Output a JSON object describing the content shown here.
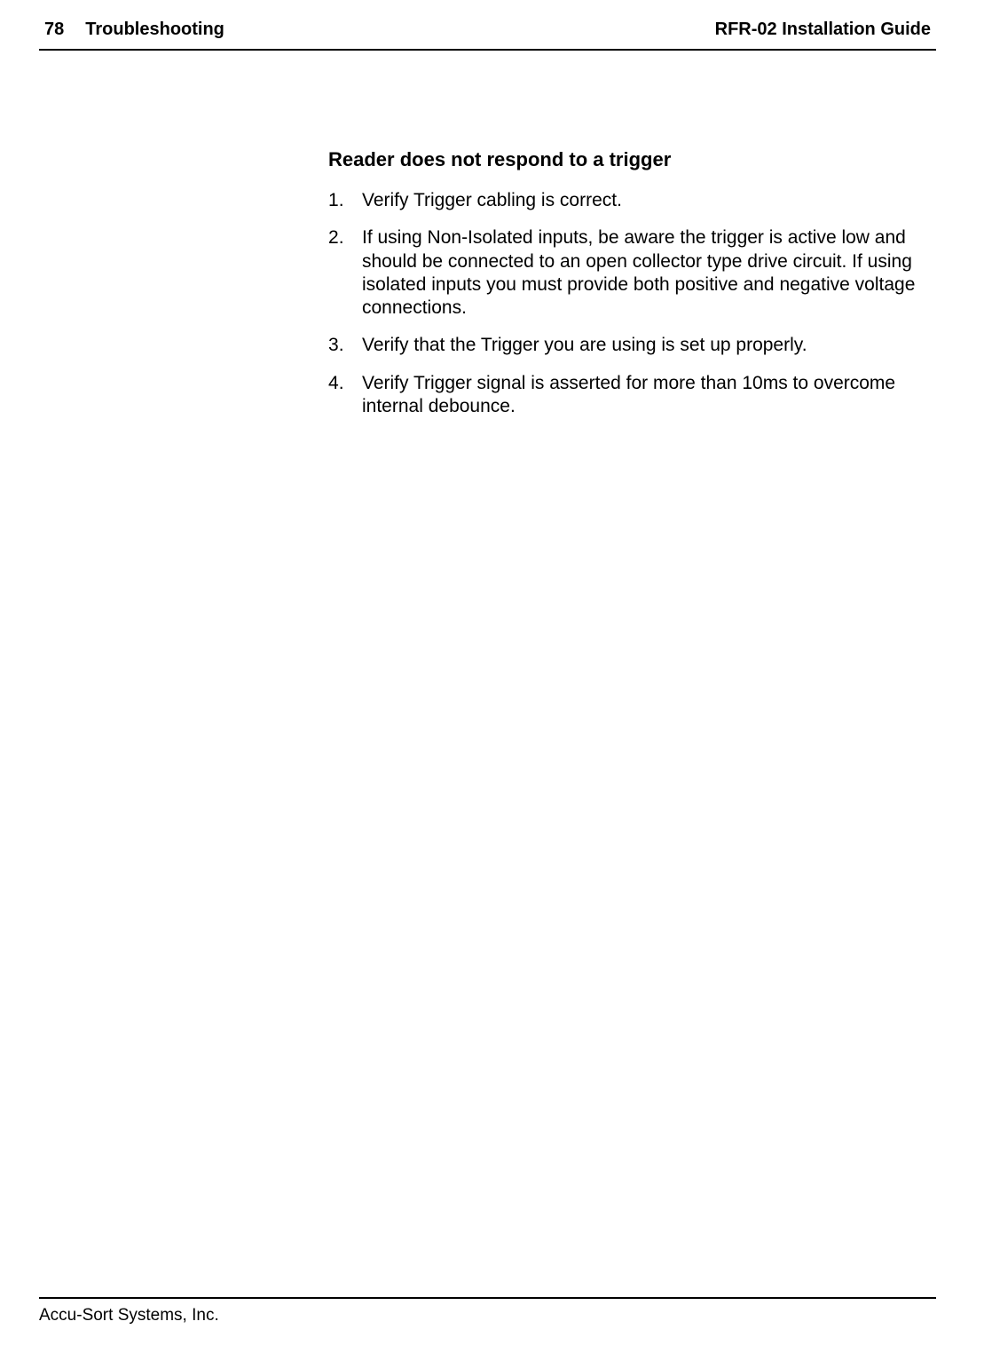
{
  "header": {
    "page_number": "78",
    "chapter": "Troubleshooting",
    "doc_title": "RFR-02 Installation Guide"
  },
  "section": {
    "title": "Reader does not respond to a trigger",
    "steps": [
      "Verify Trigger cabling is correct.",
      "If using Non-Isolated inputs, be aware the trigger is active low and should be connected to an open collector type drive circuit. If using isolated inputs you must provide both positive and negative voltage connections.",
      "Verify that the Trigger you are using is set up properly.",
      "Verify Trigger signal is asserted for more than 10ms to overcome internal debounce."
    ]
  },
  "footer": {
    "company": "Accu-Sort Systems, Inc."
  }
}
